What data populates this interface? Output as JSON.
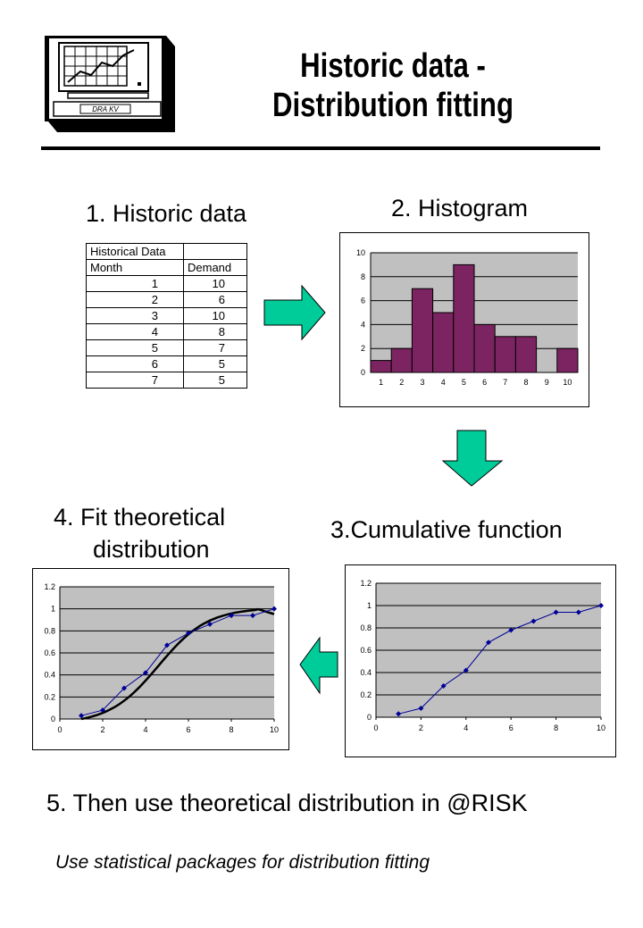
{
  "logo": {
    "label": "DRA KV"
  },
  "title": {
    "line1": "Historic data -",
    "line2": "Distribution fitting"
  },
  "steps": {
    "s1": "1. Historic data",
    "s2": "2. Histogram",
    "s3": "3.Cumulative function",
    "s4a": "4. Fit theoretical",
    "s4b": "distribution",
    "s5": "5. Then use theoretical distribution in @RISK"
  },
  "note": "Use statistical packages for distribution fitting",
  "historic_table": {
    "caption": "Historical Data",
    "headers": [
      "Month",
      "Demand"
    ],
    "rows": [
      [
        "1",
        "10"
      ],
      [
        "2",
        "6"
      ],
      [
        "3",
        "10"
      ],
      [
        "4",
        "8"
      ],
      [
        "5",
        "7"
      ],
      [
        "6",
        "5"
      ],
      [
        "7",
        "5"
      ]
    ]
  },
  "colors": {
    "arrow": "#00cc99",
    "bar": "#7b2461",
    "plot_bg": "#c0c0c0",
    "series": "#000099"
  },
  "chart_data": [
    {
      "type": "bar",
      "categories": [
        "1",
        "2",
        "3",
        "4",
        "5",
        "6",
        "7",
        "8",
        "9",
        "10"
      ],
      "values": [
        1,
        2,
        7,
        5,
        9,
        4,
        3,
        3,
        0,
        2
      ],
      "ylim": [
        0,
        10
      ],
      "yticks": [
        "0",
        "2",
        "4",
        "6",
        "8",
        "10"
      ],
      "grid": true
    },
    {
      "type": "line",
      "x": [
        1,
        2,
        3,
        4,
        5,
        6,
        7,
        8,
        9,
        10
      ],
      "y": [
        0.03,
        0.08,
        0.28,
        0.42,
        0.67,
        0.78,
        0.86,
        0.94,
        0.94,
        1.0
      ],
      "xlim": [
        0,
        10
      ],
      "ylim": [
        0,
        1.2
      ],
      "xticks": [
        "0",
        "2",
        "4",
        "6",
        "8",
        "10"
      ],
      "yticks": [
        "0",
        "0.2",
        "0.4",
        "0.6",
        "0.8",
        "1",
        "1.2"
      ],
      "grid": true
    },
    {
      "type": "line",
      "x": [
        1,
        2,
        3,
        4,
        5,
        6,
        7,
        8,
        9,
        10
      ],
      "y": [
        0.03,
        0.08,
        0.28,
        0.42,
        0.67,
        0.78,
        0.86,
        0.94,
        0.94,
        1.0
      ],
      "fitted_curve": true,
      "xlim": [
        0,
        10
      ],
      "ylim": [
        0,
        1.2
      ],
      "xticks": [
        "0",
        "2",
        "4",
        "6",
        "8",
        "10"
      ],
      "yticks": [
        "0",
        "0.2",
        "0.4",
        "0.6",
        "0.8",
        "1",
        "1.2"
      ],
      "grid": true
    }
  ]
}
